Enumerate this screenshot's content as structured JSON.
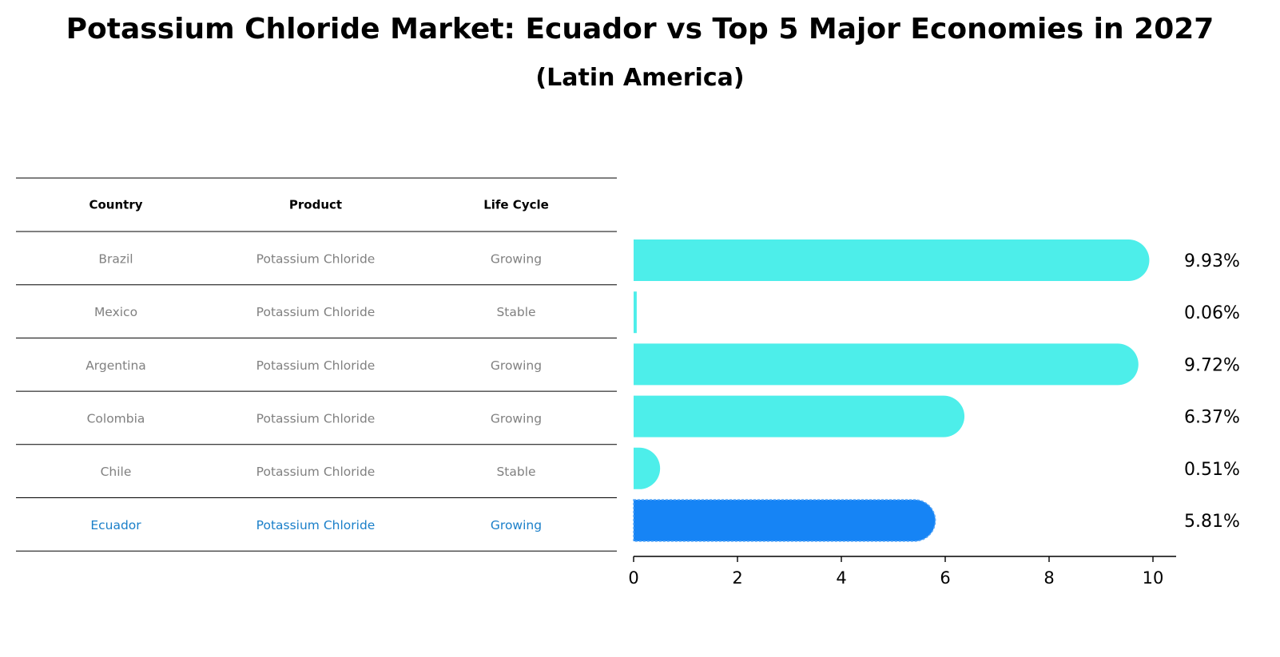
{
  "title": "Potassium Chloride Market: Ecuador vs Top 5 Major Economies in 2027",
  "subtitle": "(Latin America)",
  "colors": {
    "bar": "#4deeea",
    "highlight": "#1684f5",
    "highlight_text": "#1a7fc9",
    "row_text": "#808080"
  },
  "table": {
    "headers": [
      "Country",
      "Product",
      "Life Cycle"
    ],
    "rows": [
      {
        "country": "Brazil",
        "product": "Potassium Chloride",
        "life_cycle": "Growing",
        "highlight": false
      },
      {
        "country": "Mexico",
        "product": "Potassium Chloride",
        "life_cycle": "Stable",
        "highlight": false
      },
      {
        "country": "Argentina",
        "product": "Potassium Chloride",
        "life_cycle": "Growing",
        "highlight": false
      },
      {
        "country": "Colombia",
        "product": "Potassium Chloride",
        "life_cycle": "Growing",
        "highlight": false
      },
      {
        "country": "Chile",
        "product": "Potassium Chloride",
        "life_cycle": "Stable",
        "highlight": false
      },
      {
        "country": "Ecuador",
        "product": "Potassium Chloride",
        "life_cycle": "Growing",
        "highlight": true
      }
    ]
  },
  "chart_data": {
    "type": "bar",
    "orientation": "horizontal",
    "categories": [
      "Brazil",
      "Mexico",
      "Argentina",
      "Colombia",
      "Chile",
      "Ecuador"
    ],
    "values": [
      9.93,
      0.06,
      9.72,
      6.37,
      0.51,
      5.81
    ],
    "value_labels": [
      "9.93%",
      "0.06%",
      "9.72%",
      "6.37%",
      "0.51%",
      "5.81%"
    ],
    "highlight_category": "Ecuador",
    "xlim": [
      0,
      10.4
    ],
    "xticks": [
      0,
      2,
      4,
      6,
      8,
      10
    ],
    "xtick_labels": [
      "0",
      "2",
      "4",
      "6",
      "8",
      "10"
    ],
    "grid": false
  }
}
